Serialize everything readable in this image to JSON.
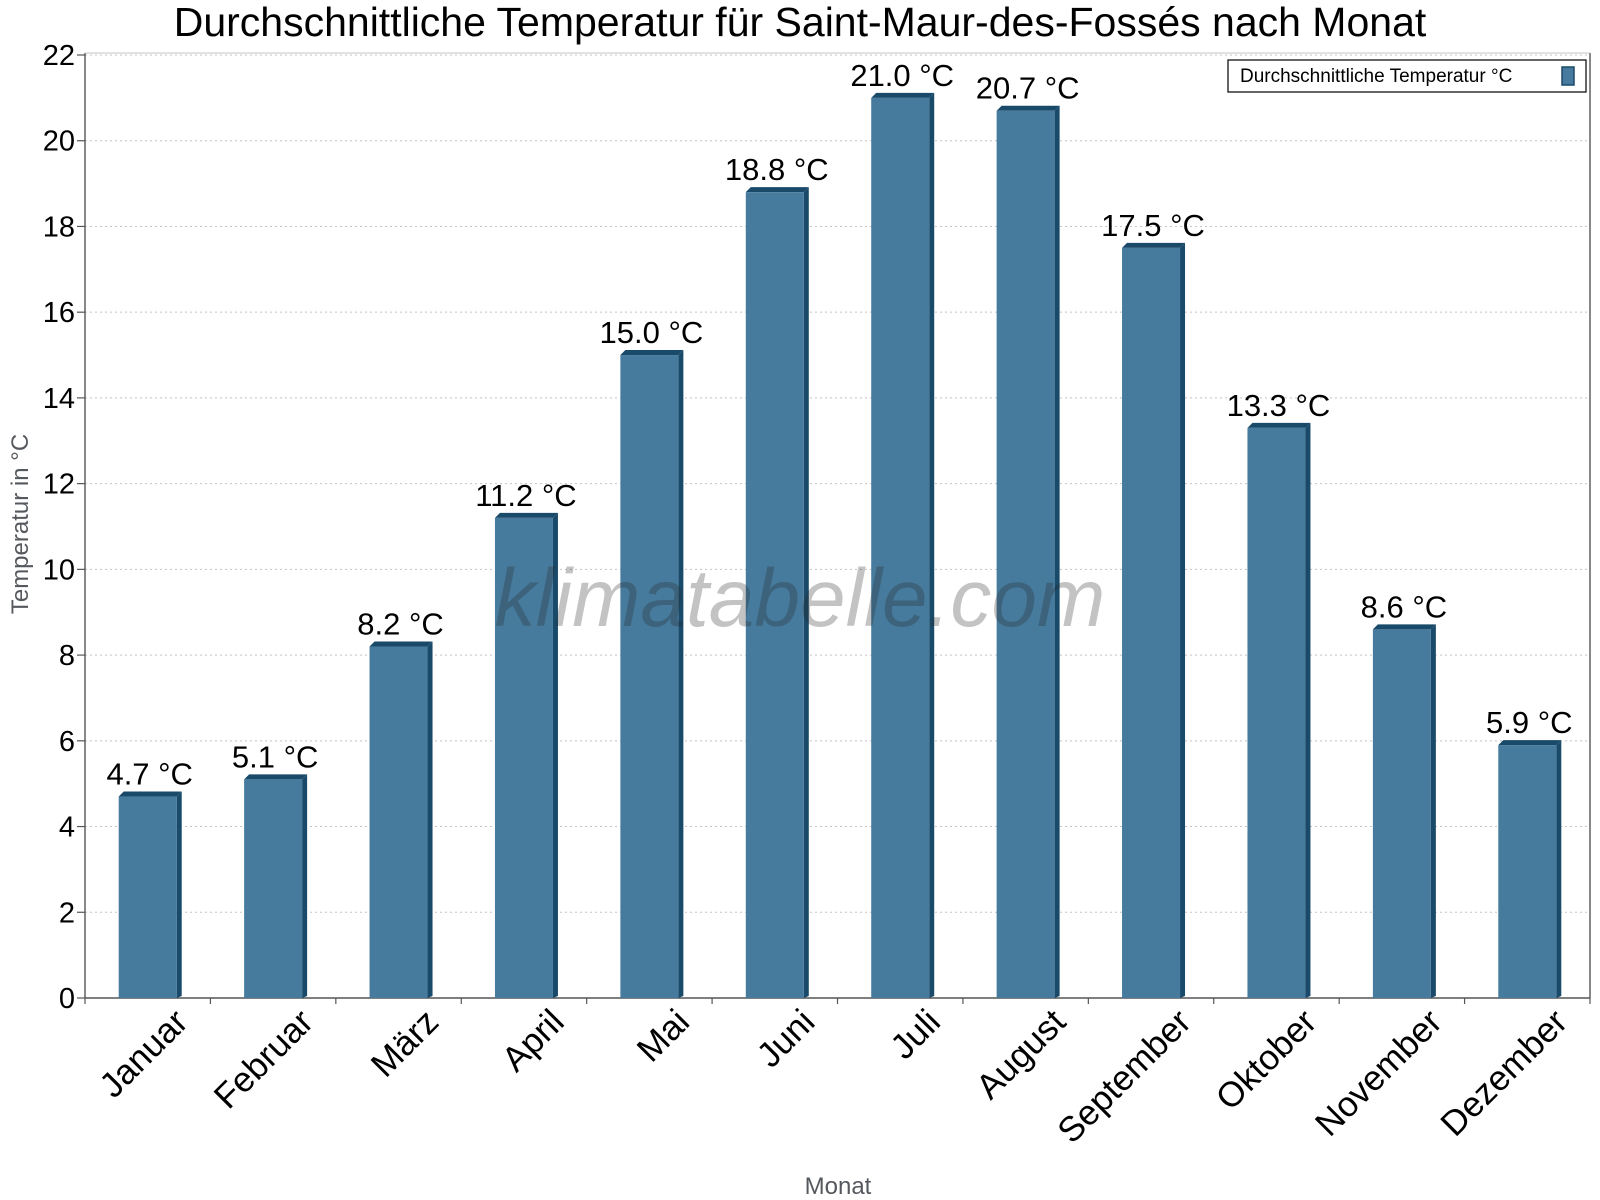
{
  "chart_data": {
    "type": "bar",
    "title": "Durchschnittliche Temperatur für Saint-Maur-des-Fossés nach Monat",
    "xlabel": "Monat",
    "ylabel": "Temperatur in °C",
    "categories": [
      "Januar",
      "Februar",
      "März",
      "April",
      "Mai",
      "Juni",
      "Juli",
      "August",
      "September",
      "Oktober",
      "November",
      "Dezember"
    ],
    "series": [
      {
        "name": "Durchschnittliche Temperatur °C",
        "values": [
          4.7,
          5.1,
          8.2,
          11.2,
          15.0,
          18.8,
          21.0,
          20.7,
          17.5,
          13.3,
          8.6,
          5.9
        ],
        "color": "#467b9d"
      }
    ],
    "data_labels": [
      "4.7 °C",
      "5.1 °C",
      "8.2 °C",
      "11.2 °C",
      "15.0 °C",
      "18.8 °C",
      "21.0 °C",
      "20.7 °C",
      "17.5 °C",
      "13.3 °C",
      "8.6 °C",
      "5.9 °C"
    ],
    "yticks": [
      "0",
      "2",
      "4",
      "6",
      "8",
      "10",
      "12",
      "14",
      "16",
      "18",
      "20",
      "22"
    ],
    "ylim": [
      0,
      22
    ],
    "grid": true,
    "legend_position": "top-right",
    "watermark": "klimatabelle.com",
    "colors": {
      "bar": "#467b9d",
      "bar_edge": "#1a4a6a"
    }
  }
}
